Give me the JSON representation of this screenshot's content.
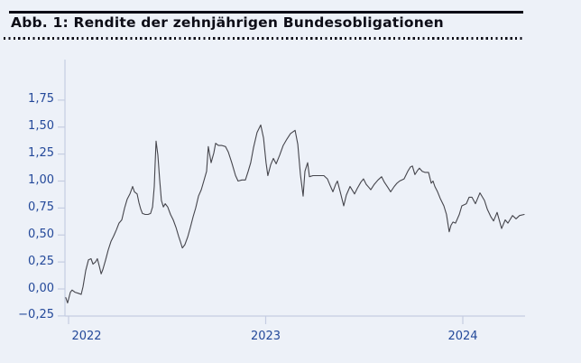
{
  "header": {
    "title": "Abb. 1: Rendite der zehnjährigen Bundesobligationen"
  },
  "chart_data": {
    "type": "line",
    "title": "Abb. 1: Rendite der zehnjährigen Bundesobligationen",
    "xlabel": "",
    "ylabel": "",
    "legend": "none",
    "grid": false,
    "x_range": [
      2021.98,
      2024.32
    ],
    "y_range": [
      -0.25,
      2.13
    ],
    "colors": {
      "background": "#edf1f8",
      "line": "#45454c",
      "axis": "#c5cde1",
      "tick_label": "#24499a",
      "title": "#0d0d17"
    },
    "y_ticks": [
      {
        "value": 1.75,
        "label": "1,75"
      },
      {
        "value": 1.5,
        "label": "1,50"
      },
      {
        "value": 1.25,
        "label": "1,25"
      },
      {
        "value": 1.0,
        "label": "1,00"
      },
      {
        "value": 0.75,
        "label": "0,75"
      },
      {
        "value": 0.5,
        "label": "0,50"
      },
      {
        "value": 0.25,
        "label": "0,25"
      },
      {
        "value": 0.0,
        "label": "0,00"
      },
      {
        "value": -0.25,
        "label": "−0,25"
      }
    ],
    "x_ticks": [
      {
        "value": 2022,
        "label": "2022"
      },
      {
        "value": 2023,
        "label": "2023"
      },
      {
        "value": 2024,
        "label": "2024"
      }
    ],
    "series": [
      {
        "name": "Rendite der zehnjährigen Bundesobligationen",
        "points": [
          [
            2021.986,
            -0.08
          ],
          [
            2021.995,
            -0.13
          ],
          [
            2022.009,
            -0.03
          ],
          [
            2022.018,
            -0.01
          ],
          [
            2022.032,
            -0.03
          ],
          [
            2022.05,
            -0.04
          ],
          [
            2022.064,
            -0.05
          ],
          [
            2022.073,
            0.02
          ],
          [
            2022.087,
            0.17
          ],
          [
            2022.101,
            0.27
          ],
          [
            2022.114,
            0.28
          ],
          [
            2022.124,
            0.23
          ],
          [
            2022.137,
            0.25
          ],
          [
            2022.146,
            0.28
          ],
          [
            2022.156,
            0.21
          ],
          [
            2022.165,
            0.14
          ],
          [
            2022.174,
            0.18
          ],
          [
            2022.188,
            0.27
          ],
          [
            2022.201,
            0.36
          ],
          [
            2022.215,
            0.44
          ],
          [
            2022.229,
            0.49
          ],
          [
            2022.243,
            0.55
          ],
          [
            2022.256,
            0.61
          ],
          [
            2022.27,
            0.64
          ],
          [
            2022.284,
            0.75
          ],
          [
            2022.297,
            0.83
          ],
          [
            2022.311,
            0.88
          ],
          [
            2022.325,
            0.95
          ],
          [
            2022.334,
            0.9
          ],
          [
            2022.348,
            0.88
          ],
          [
            2022.357,
            0.8
          ],
          [
            2022.366,
            0.74
          ],
          [
            2022.375,
            0.7
          ],
          [
            2022.389,
            0.69
          ],
          [
            2022.403,
            0.69
          ],
          [
            2022.416,
            0.7
          ],
          [
            2022.426,
            0.76
          ],
          [
            2022.435,
            0.95
          ],
          [
            2022.439,
            1.15
          ],
          [
            2022.444,
            1.37
          ],
          [
            2022.453,
            1.24
          ],
          [
            2022.462,
            1.02
          ],
          [
            2022.471,
            0.82
          ],
          [
            2022.481,
            0.76
          ],
          [
            2022.49,
            0.79
          ],
          [
            2022.503,
            0.76
          ],
          [
            2022.517,
            0.69
          ],
          [
            2022.531,
            0.64
          ],
          [
            2022.545,
            0.57
          ],
          [
            2022.558,
            0.49
          ],
          [
            2022.567,
            0.44
          ],
          [
            2022.577,
            0.38
          ],
          [
            2022.59,
            0.41
          ],
          [
            2022.604,
            0.48
          ],
          [
            2022.618,
            0.57
          ],
          [
            2022.632,
            0.67
          ],
          [
            2022.645,
            0.75
          ],
          [
            2022.659,
            0.86
          ],
          [
            2022.673,
            0.92
          ],
          [
            2022.686,
            1.0
          ],
          [
            2022.7,
            1.09
          ],
          [
            2022.709,
            1.32
          ],
          [
            2022.723,
            1.17
          ],
          [
            2022.737,
            1.26
          ],
          [
            2022.746,
            1.35
          ],
          [
            2022.76,
            1.33
          ],
          [
            2022.778,
            1.33
          ],
          [
            2022.796,
            1.32
          ],
          [
            2022.81,
            1.27
          ],
          [
            2022.828,
            1.17
          ],
          [
            2022.847,
            1.05
          ],
          [
            2022.86,
            1.0
          ],
          [
            2022.879,
            1.01
          ],
          [
            2022.897,
            1.01
          ],
          [
            2022.911,
            1.09
          ],
          [
            2022.924,
            1.17
          ],
          [
            2022.938,
            1.31
          ],
          [
            2022.956,
            1.45
          ],
          [
            2022.975,
            1.52
          ],
          [
            2022.989,
            1.4
          ],
          [
            2023.002,
            1.17
          ],
          [
            2023.011,
            1.05
          ],
          [
            2023.025,
            1.15
          ],
          [
            2023.039,
            1.21
          ],
          [
            2023.053,
            1.16
          ],
          [
            2023.071,
            1.24
          ],
          [
            2023.089,
            1.33
          ],
          [
            2023.108,
            1.39
          ],
          [
            2023.126,
            1.44
          ],
          [
            2023.149,
            1.47
          ],
          [
            2023.163,
            1.34
          ],
          [
            2023.176,
            1.06
          ],
          [
            2023.19,
            0.86
          ],
          [
            2023.199,
            1.09
          ],
          [
            2023.213,
            1.17
          ],
          [
            2023.222,
            1.04
          ],
          [
            2023.24,
            1.05
          ],
          [
            2023.259,
            1.05
          ],
          [
            2023.277,
            1.05
          ],
          [
            2023.295,
            1.05
          ],
          [
            2023.313,
            1.02
          ],
          [
            2023.327,
            0.96
          ],
          [
            2023.341,
            0.9
          ],
          [
            2023.355,
            0.97
          ],
          [
            2023.364,
            1.0
          ],
          [
            2023.378,
            0.9
          ],
          [
            2023.396,
            0.77
          ],
          [
            2023.409,
            0.87
          ],
          [
            2023.428,
            0.95
          ],
          [
            2023.441,
            0.91
          ],
          [
            2023.451,
            0.88
          ],
          [
            2023.464,
            0.93
          ],
          [
            2023.483,
            0.99
          ],
          [
            2023.496,
            1.02
          ],
          [
            2023.51,
            0.97
          ],
          [
            2023.524,
            0.94
          ],
          [
            2023.533,
            0.92
          ],
          [
            2023.551,
            0.97
          ],
          [
            2023.57,
            1.01
          ],
          [
            2023.588,
            1.04
          ],
          [
            2023.602,
            0.99
          ],
          [
            2023.62,
            0.94
          ],
          [
            2023.634,
            0.9
          ],
          [
            2023.652,
            0.95
          ],
          [
            2023.666,
            0.98
          ],
          [
            2023.679,
            1.0
          ],
          [
            2023.702,
            1.02
          ],
          [
            2023.721,
            1.09
          ],
          [
            2023.734,
            1.13
          ],
          [
            2023.744,
            1.14
          ],
          [
            2023.757,
            1.06
          ],
          [
            2023.771,
            1.1
          ],
          [
            2023.78,
            1.12
          ],
          [
            2023.794,
            1.09
          ],
          [
            2023.808,
            1.08
          ],
          [
            2023.826,
            1.08
          ],
          [
            2023.84,
            0.98
          ],
          [
            2023.849,
            1.0
          ],
          [
            2023.858,
            0.95
          ],
          [
            2023.872,
            0.9
          ],
          [
            2023.885,
            0.84
          ],
          [
            2023.904,
            0.77
          ],
          [
            2023.917,
            0.69
          ],
          [
            2023.931,
            0.53
          ],
          [
            2023.94,
            0.59
          ],
          [
            2023.95,
            0.62
          ],
          [
            2023.963,
            0.61
          ],
          [
            2023.982,
            0.69
          ],
          [
            2023.995,
            0.77
          ],
          [
            2024.018,
            0.79
          ],
          [
            2024.032,
            0.85
          ],
          [
            2024.046,
            0.85
          ],
          [
            2024.064,
            0.79
          ],
          [
            2024.087,
            0.89
          ],
          [
            2024.11,
            0.82
          ],
          [
            2024.124,
            0.74
          ],
          [
            2024.142,
            0.67
          ],
          [
            2024.156,
            0.63
          ],
          [
            2024.174,
            0.71
          ],
          [
            2024.197,
            0.56
          ],
          [
            2024.215,
            0.64
          ],
          [
            2024.229,
            0.61
          ],
          [
            2024.252,
            0.68
          ],
          [
            2024.27,
            0.65
          ],
          [
            2024.288,
            0.68
          ],
          [
            2024.311,
            0.69
          ]
        ]
      }
    ]
  }
}
